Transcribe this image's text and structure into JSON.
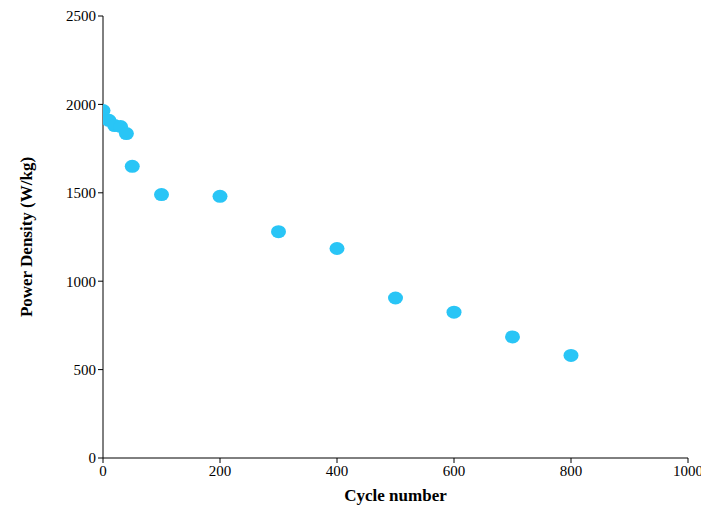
{
  "chart_data": {
    "type": "scatter",
    "x_label": "Cycle number",
    "y_label": "Power Density (W/kg)",
    "x": [
      0,
      10,
      20,
      30,
      40,
      50,
      100,
      200,
      300,
      400,
      500,
      600,
      700,
      800
    ],
    "values": [
      1965,
      1910,
      1880,
      1875,
      1835,
      1650,
      1490,
      1480,
      1280,
      1185,
      905,
      825,
      685,
      580
    ],
    "color": "#29c5f6",
    "marker": "circle",
    "xlim": [
      0,
      1000
    ],
    "ylim": [
      0,
      2500
    ],
    "xticks": [
      0,
      200,
      400,
      600,
      800,
      1000
    ],
    "yticks": [
      0,
      500,
      1000,
      1500,
      2000,
      2500
    ],
    "grid": false
  }
}
